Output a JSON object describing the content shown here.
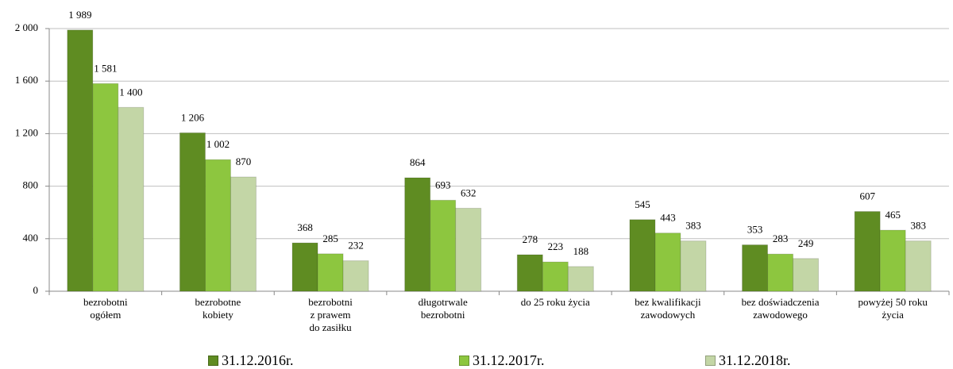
{
  "chart_data": {
    "type": "bar",
    "categories": [
      "bezrobotni\nogółem",
      "bezrobotne\nkobiety",
      "bezrobotni\nz prawem\ndo zasiłku",
      "długotrwale\nbezrobotni",
      "do 25 roku życia",
      "bez kwalifikacji\nzawodowych",
      "bez doświadczenia\nzawodowego",
      "powyżej 50 roku\nżycia"
    ],
    "series": [
      {
        "name": "31.12.2016r.",
        "color": "#5f8c22",
        "values": [
          1989,
          1206,
          368,
          864,
          278,
          545,
          353,
          607
        ],
        "value_labels": [
          "1 989",
          "1 206",
          "368",
          "864",
          "278",
          "545",
          "353",
          "607"
        ]
      },
      {
        "name": "31.12.2017r.",
        "color": "#8dc63f",
        "values": [
          1581,
          1002,
          285,
          693,
          223,
          443,
          283,
          465
        ],
        "value_labels": [
          "1 581",
          "1 002",
          "285",
          "693",
          "223",
          "443",
          "283",
          "465"
        ]
      },
      {
        "name": "31.12.2018r.",
        "color": "#c3d6a6",
        "values": [
          1400,
          870,
          232,
          632,
          188,
          383,
          249,
          383
        ],
        "value_labels": [
          "1 400",
          "870",
          "232",
          "632",
          "188",
          "383",
          "249",
          "383"
        ]
      }
    ],
    "ylim": [
      0,
      2000
    ],
    "yticks": [
      0,
      400,
      800,
      {
        "value": 1200,
        "label": "1 200"
      },
      {
        "value": 1600,
        "label": "1 600"
      },
      {
        "value": 2000,
        "label": "2 000"
      }
    ],
    "grid": true,
    "legend": "bottom"
  }
}
